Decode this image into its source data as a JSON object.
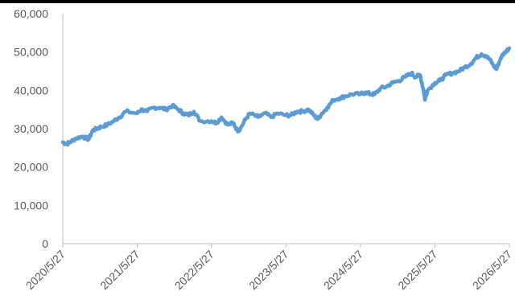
{
  "chart_data": {
    "type": "line",
    "title": "",
    "xlabel": "",
    "ylabel": "",
    "ylim": [
      0,
      60000
    ],
    "y_ticks": [
      0,
      10000,
      20000,
      30000,
      40000,
      50000,
      60000
    ],
    "y_tick_labels": [
      "0",
      "10,000",
      "20,000",
      "30,000",
      "40,000",
      "50,000",
      "60,000"
    ],
    "x_ticks": [
      "2020/5/27",
      "2021/5/27",
      "2022/5/27",
      "2023/5/27",
      "2024/5/27",
      "2025/5/27",
      "2026/5/27"
    ],
    "grid": false,
    "legend": "none",
    "line_color": "#5B9BD5",
    "axis_color": "#BFBFBF",
    "series": [
      {
        "x": [
          "2020-05-27",
          "2020-06-15",
          "2020-07-01",
          "2020-08-01",
          "2020-09-01",
          "2020-10-01",
          "2020-10-20",
          "2020-11-10",
          "2020-12-01",
          "2021-01-01",
          "2021-02-01",
          "2021-03-01",
          "2021-04-01",
          "2021-05-27",
          "2021-06-15",
          "2021-07-15",
          "2021-08-15",
          "2021-09-15",
          "2021-10-15",
          "2021-11-15",
          "2021-12-15",
          "2022-01-10",
          "2022-02-01",
          "2022-03-01",
          "2022-04-01",
          "2022-05-27",
          "2022-06-20",
          "2022-07-15",
          "2022-08-15",
          "2022-09-10",
          "2022-10-01",
          "2022-10-15",
          "2022-11-10",
          "2022-12-01",
          "2023-01-10",
          "2023-02-15",
          "2023-03-15",
          "2023-04-15",
          "2023-05-27",
          "2023-06-20",
          "2023-07-20",
          "2023-08-15",
          "2023-09-15",
          "2023-10-10",
          "2023-10-30",
          "2023-11-20",
          "2023-12-15",
          "2024-01-15",
          "2024-02-15",
          "2024-03-15",
          "2024-04-15",
          "2024-05-27",
          "2024-06-20",
          "2024-07-15",
          "2024-08-05",
          "2024-09-01",
          "2024-10-01",
          "2024-11-01",
          "2024-12-01",
          "2025-01-01",
          "2025-02-01",
          "2025-02-20",
          "2025-03-15",
          "2025-04-01",
          "2025-04-08",
          "2025-04-20",
          "2025-05-27",
          "2025-06-20",
          "2025-07-20",
          "2025-08-20",
          "2025-09-20",
          "2025-10-20",
          "2025-11-20",
          "2025-12-15",
          "2026-01-10",
          "2026-02-01",
          "2026-02-20",
          "2026-03-10",
          "2026-03-25",
          "2026-04-15",
          "2026-05-05",
          "2026-05-27"
        ],
        "values": [
          26500,
          26000,
          26500,
          27500,
          28000,
          27200,
          29500,
          30000,
          30500,
          31000,
          32000,
          33000,
          34500,
          34000,
          35000,
          34500,
          35500,
          35500,
          35000,
          36000,
          35000,
          34000,
          33500,
          34500,
          32000,
          32000,
          31500,
          33000,
          31000,
          31500,
          29500,
          30000,
          32500,
          34000,
          33000,
          34000,
          33000,
          34000,
          33500,
          33500,
          34500,
          34500,
          35000,
          33500,
          32500,
          34000,
          35500,
          37500,
          38000,
          38500,
          39000,
          39000,
          39500,
          39000,
          39000,
          40500,
          41000,
          42000,
          42500,
          43500,
          44500,
          43500,
          44000,
          40000,
          37500,
          40000,
          42000,
          42500,
          44000,
          44500,
          45000,
          46000,
          47000,
          48500,
          49500,
          49000,
          48000,
          46500,
          45500,
          48500,
          50000,
          51000
        ]
      }
    ]
  }
}
